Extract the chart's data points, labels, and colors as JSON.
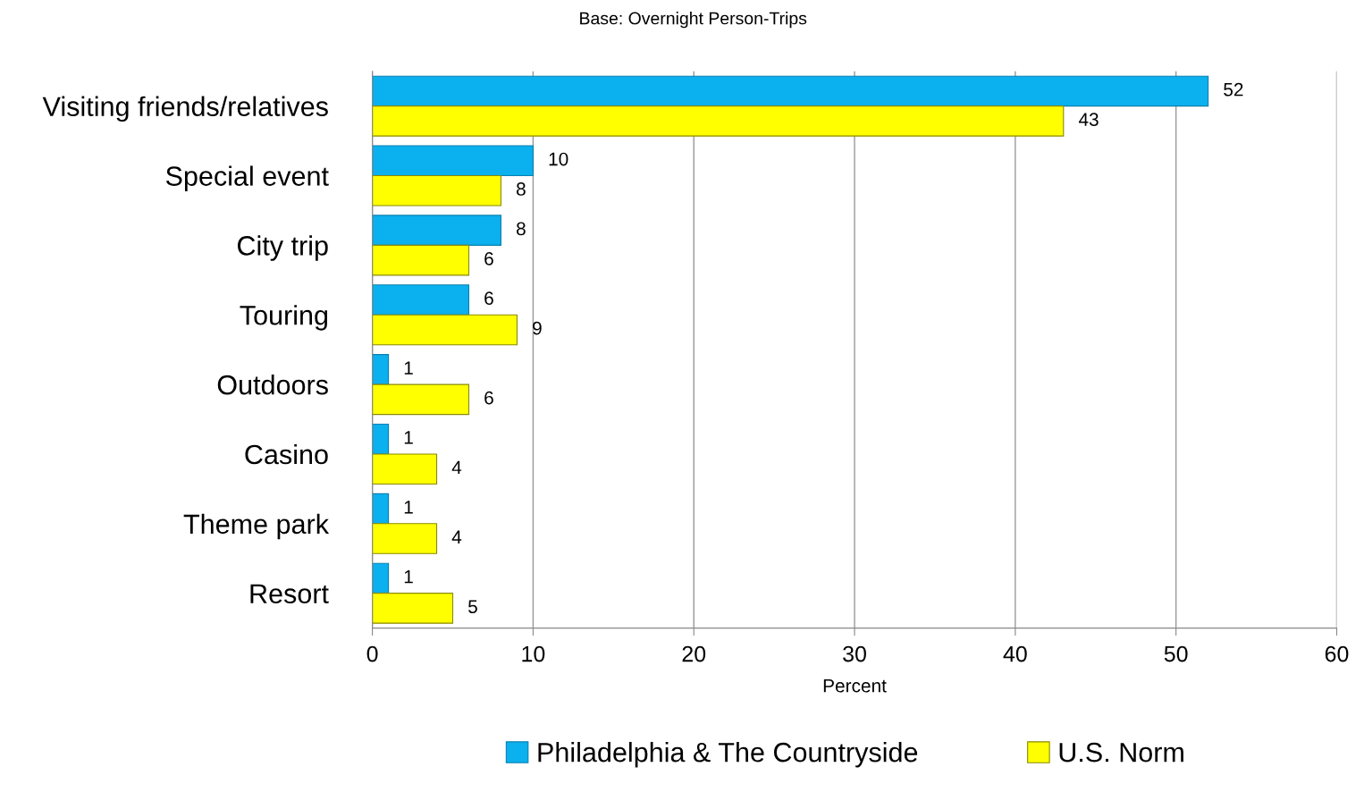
{
  "chart_data": {
    "type": "bar",
    "orientation": "horizontal",
    "title": "Base: Overnight Person-Trips",
    "xlabel": "Percent",
    "categories": [
      "Visiting friends/relatives",
      "Special event",
      "City trip",
      "Touring",
      "Outdoors",
      "Casino",
      "Theme park",
      "Resort"
    ],
    "series": [
      {
        "name": "Philadelphia & The Countryside",
        "color": "#0bb0ee",
        "values": [
          52,
          10,
          8,
          6,
          1,
          1,
          1,
          1
        ]
      },
      {
        "name": "U.S. Norm",
        "color": "#ffff00",
        "values": [
          43,
          8,
          6,
          9,
          6,
          4,
          4,
          5
        ]
      }
    ],
    "xlim": [
      0,
      60
    ],
    "xticks": [
      0,
      10,
      20,
      30,
      40,
      50,
      60
    ],
    "grid": "x",
    "legend": "bottom",
    "data_labels": true
  }
}
